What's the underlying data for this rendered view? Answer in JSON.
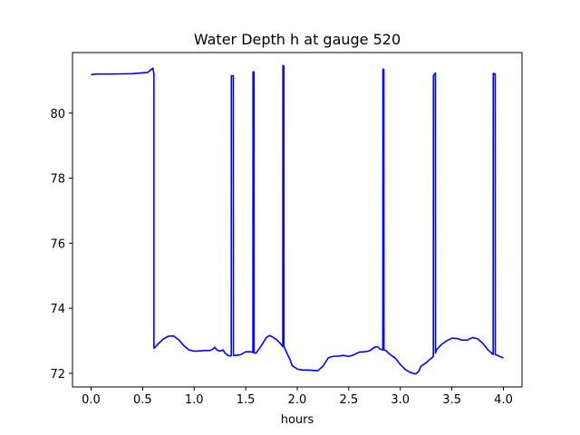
{
  "chart_data": {
    "type": "line",
    "title": "Water Depth h at gauge 520",
    "xlabel": "hours",
    "ylabel": "",
    "xlim": [
      -0.18,
      4.18
    ],
    "ylim": [
      71.58,
      81.86
    ],
    "xticks": [
      0.0,
      0.5,
      1.0,
      1.5,
      2.0,
      2.5,
      3.0,
      3.5,
      4.0
    ],
    "xtick_labels": [
      "0.0",
      "0.5",
      "1.0",
      "1.5",
      "2.0",
      "2.5",
      "3.0",
      "3.5",
      "4.0"
    ],
    "yticks": [
      72,
      74,
      76,
      78,
      80
    ],
    "ytick_labels": [
      "72",
      "74",
      "76",
      "78",
      "80"
    ],
    "grid": false,
    "series": [
      {
        "color": "#0000ff",
        "x": [
          0.0,
          0.05,
          0.2,
          0.4,
          0.55,
          0.6,
          0.61,
          0.61,
          0.65,
          0.7,
          0.75,
          0.8,
          0.85,
          0.9,
          0.95,
          1.0,
          1.05,
          1.1,
          1.15,
          1.18,
          1.2,
          1.22,
          1.25,
          1.28,
          1.3,
          1.33,
          1.35,
          1.36,
          1.361,
          1.37,
          1.38,
          1.381,
          1.4,
          1.45,
          1.5,
          1.55,
          1.57,
          1.571,
          1.58,
          1.581,
          1.6,
          1.65,
          1.7,
          1.73,
          1.76,
          1.8,
          1.83,
          1.85,
          1.86,
          1.861,
          1.87,
          1.871,
          1.9,
          1.93,
          1.95,
          2.0,
          2.05,
          2.1,
          2.15,
          2.2,
          2.25,
          2.3,
          2.33,
          2.35,
          2.4,
          2.45,
          2.5,
          2.55,
          2.6,
          2.65,
          2.7,
          2.75,
          2.78,
          2.8,
          2.83,
          2.831,
          2.84,
          2.841,
          2.86,
          2.9,
          2.95,
          3.0,
          3.05,
          3.1,
          3.15,
          3.18,
          3.2,
          3.25,
          3.28,
          3.3,
          3.32,
          3.321,
          3.34,
          3.341,
          3.35,
          3.4,
          3.45,
          3.5,
          3.55,
          3.6,
          3.65,
          3.7,
          3.75,
          3.8,
          3.85,
          3.9,
          3.9,
          3.901,
          3.92,
          3.921,
          3.95,
          4.0
        ],
        "y": [
          81.18,
          81.2,
          81.2,
          81.21,
          81.25,
          81.38,
          81.2,
          72.77,
          72.9,
          73.05,
          73.14,
          73.15,
          73.03,
          72.85,
          72.72,
          72.68,
          72.69,
          72.7,
          72.7,
          72.74,
          72.8,
          72.72,
          72.68,
          72.72,
          72.62,
          72.55,
          72.53,
          72.55,
          81.15,
          81.15,
          81.15,
          72.55,
          72.55,
          72.57,
          72.66,
          72.66,
          72.64,
          81.27,
          81.26,
          72.63,
          72.62,
          72.84,
          73.1,
          73.16,
          73.12,
          73.03,
          72.94,
          72.86,
          72.82,
          81.46,
          81.45,
          72.82,
          72.62,
          72.42,
          72.24,
          72.13,
          72.1,
          72.1,
          72.09,
          72.08,
          72.22,
          72.47,
          72.51,
          72.52,
          72.53,
          72.55,
          72.52,
          72.57,
          72.65,
          72.66,
          72.69,
          72.8,
          72.82,
          72.75,
          72.72,
          81.35,
          81.34,
          72.72,
          72.7,
          72.58,
          72.47,
          72.27,
          72.11,
          72.02,
          71.98,
          72.07,
          72.22,
          72.32,
          72.41,
          72.46,
          72.52,
          81.15,
          81.23,
          72.62,
          72.72,
          72.89,
          73.0,
          73.08,
          73.07,
          73.02,
          73.02,
          73.1,
          73.06,
          72.92,
          72.72,
          72.58,
          72.58,
          81.22,
          81.2,
          72.58,
          72.54,
          72.47
        ]
      }
    ]
  }
}
